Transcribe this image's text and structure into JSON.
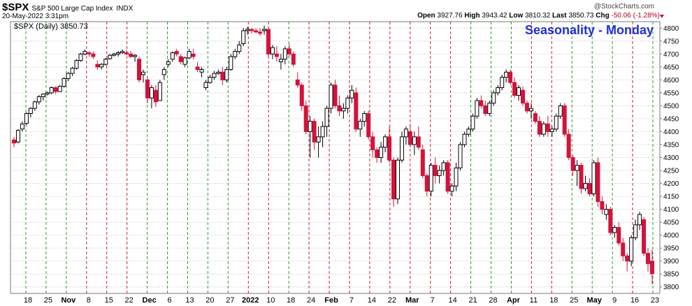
{
  "header": {
    "symbol": "$SPX",
    "description": "S&P 500 Large Cap Index",
    "exchange": "INDX",
    "date": "20-May-2022 3:31pm",
    "attribution": "@StockCharts.com",
    "open_label": "Open",
    "open": "3927.76",
    "high_label": "High",
    "high": "3943.42",
    "low_label": "Low",
    "low": "3810.32",
    "last_label": "Last",
    "last": "3850.73",
    "chg_label": "Chg",
    "chg": "-50.06 (-1.28%)"
  },
  "colors": {
    "up": "#ffffff",
    "down": "#d4123a",
    "green_line": "#2a9b2a",
    "red_line": "#c81e2a",
    "title": "#1f2fd6"
  },
  "chart_data": {
    "type": "candlestick",
    "title": "Seasonality - Monday",
    "legend": "$SPX (Daily) 3850.73",
    "ylim": [
      3775,
      4825
    ],
    "y_ticks": [
      3800,
      3850,
      3900,
      3950,
      4000,
      4050,
      4100,
      4150,
      4200,
      4250,
      4300,
      4350,
      4400,
      4450,
      4500,
      4550,
      4600,
      4650,
      4700,
      4750,
      4800
    ],
    "x_tick_labels": [
      "18",
      "25",
      "Nov",
      "8",
      "15",
      "22",
      "Dec",
      "6",
      "13",
      "20",
      "27",
      "2022",
      "10",
      "18",
      "24",
      "Feb",
      "7",
      "14",
      "22",
      "Mar",
      "7",
      "14",
      "21",
      "28",
      "Apr",
      "11",
      "18",
      "25",
      "May",
      "9",
      "16",
      "23"
    ],
    "bold_tick_labels": [
      "Nov",
      "Dec",
      "2022",
      "Feb",
      "Mar",
      "Apr",
      "May"
    ],
    "vertical_markers": "Green dashed lines mark Mondays before up days, red dashed lines mark Mondays before down days",
    "marker_colors": [
      "green",
      "green",
      "green",
      "red",
      "red",
      "red",
      "green",
      "green",
      "green",
      "green",
      "green",
      "red",
      "red",
      "green",
      "red",
      "red",
      "red",
      "red",
      "red",
      "red",
      "red",
      "red",
      "green",
      "green",
      "green",
      "red",
      "red",
      "green",
      "green",
      "green",
      "red",
      "green"
    ],
    "candles": [
      [
        4368,
        4380,
        4340,
        4356
      ],
      [
        4360,
        4410,
        4355,
        4405
      ],
      [
        4410,
        4440,
        4400,
        4430
      ],
      [
        4432,
        4475,
        4425,
        4470
      ],
      [
        4470,
        4495,
        4455,
        4490
      ],
      [
        4490,
        4520,
        4480,
        4515
      ],
      [
        4515,
        4542,
        4505,
        4535
      ],
      [
        4535,
        4548,
        4520,
        4545
      ],
      [
        4545,
        4555,
        4540,
        4550
      ],
      [
        4550,
        4575,
        4545,
        4570
      ],
      [
        4570,
        4575,
        4545,
        4555
      ],
      [
        4555,
        4580,
        4555,
        4575
      ],
      [
        4575,
        4610,
        4570,
        4605
      ],
      [
        4605,
        4630,
        4595,
        4625
      ],
      [
        4625,
        4650,
        4615,
        4645
      ],
      [
        4645,
        4680,
        4640,
        4675
      ],
      [
        4675,
        4705,
        4670,
        4700
      ],
      [
        4700,
        4718,
        4695,
        4710
      ],
      [
        4705,
        4712,
        4690,
        4700
      ],
      [
        4700,
        4710,
        4680,
        4690
      ],
      [
        4660,
        4675,
        4640,
        4650
      ],
      [
        4650,
        4665,
        4640,
        4660
      ],
      [
        4660,
        4685,
        4655,
        4680
      ],
      [
        4682,
        4700,
        4678,
        4695
      ],
      [
        4695,
        4705,
        4690,
        4700
      ],
      [
        4700,
        4712,
        4690,
        4705
      ],
      [
        4705,
        4718,
        4700,
        4710
      ],
      [
        4705,
        4715,
        4695,
        4700
      ],
      [
        4700,
        4712,
        4685,
        4690
      ],
      [
        4690,
        4700,
        4670,
        4695
      ],
      [
        4680,
        4690,
        4590,
        4600
      ],
      [
        4620,
        4640,
        4590,
        4630
      ],
      [
        4600,
        4610,
        4510,
        4530
      ],
      [
        4530,
        4580,
        4490,
        4570
      ],
      [
        4560,
        4580,
        4495,
        4515
      ],
      [
        4520,
        4600,
        4520,
        4590
      ],
      [
        4620,
        4650,
        4600,
        4640
      ],
      [
        4660,
        4680,
        4650,
        4670
      ],
      [
        4680,
        4710,
        4670,
        4705
      ],
      [
        4710,
        4720,
        4690,
        4700
      ],
      [
        4690,
        4700,
        4660,
        4670
      ],
      [
        4660,
        4690,
        4650,
        4685
      ],
      [
        4685,
        4720,
        4680,
        4710
      ],
      [
        4700,
        4720,
        4680,
        4690
      ],
      [
        4650,
        4670,
        4630,
        4640
      ],
      [
        4630,
        4650,
        4610,
        4640
      ],
      [
        4570,
        4600,
        4560,
        4590
      ],
      [
        4590,
        4620,
        4585,
        4610
      ],
      [
        4610,
        4635,
        4600,
        4625
      ],
      [
        4625,
        4640,
        4620,
        4630
      ],
      [
        4630,
        4650,
        4580,
        4600
      ],
      [
        4600,
        4650,
        4590,
        4640
      ],
      [
        4640,
        4700,
        4635,
        4690
      ],
      [
        4690,
        4720,
        4680,
        4710
      ],
      [
        4710,
        4750,
        4700,
        4735
      ],
      [
        4740,
        4800,
        4730,
        4790
      ],
      [
        4790,
        4805,
        4775,
        4795
      ],
      [
        4795,
        4800,
        4778,
        4790
      ],
      [
        4790,
        4800,
        4780,
        4785
      ],
      [
        4785,
        4800,
        4770,
        4780
      ],
      [
        4790,
        4810,
        4775,
        4795
      ],
      [
        4795,
        4800,
        4690,
        4700
      ],
      [
        4700,
        4735,
        4680,
        4725
      ],
      [
        4700,
        4730,
        4670,
        4690
      ],
      [
        4670,
        4700,
        4640,
        4680
      ],
      [
        4680,
        4730,
        4660,
        4720
      ],
      [
        4720,
        4740,
        4690,
        4700
      ],
      [
        4700,
        4710,
        4650,
        4660
      ],
      [
        4600,
        4630,
        4570,
        4580
      ],
      [
        4580,
        4590,
        4480,
        4500
      ],
      [
        4500,
        4520,
        4390,
        4400
      ],
      [
        4400,
        4460,
        4300,
        4440
      ],
      [
        4440,
        4450,
        4330,
        4360
      ],
      [
        4360,
        4420,
        4300,
        4380
      ],
      [
        4380,
        4440,
        4340,
        4420
      ],
      [
        4420,
        4500,
        4380,
        4490
      ],
      [
        4490,
        4590,
        4470,
        4580
      ],
      [
        4580,
        4600,
        4490,
        4500
      ],
      [
        4500,
        4540,
        4460,
        4480
      ],
      [
        4480,
        4510,
        4450,
        4490
      ],
      [
        4490,
        4540,
        4470,
        4530
      ],
      [
        4530,
        4580,
        4510,
        4560
      ],
      [
        4550,
        4570,
        4400,
        4410
      ],
      [
        4410,
        4450,
        4380,
        4440
      ],
      [
        4440,
        4480,
        4420,
        4470
      ],
      [
        4470,
        4480,
        4370,
        4380
      ],
      [
        4380,
        4400,
        4300,
        4330
      ],
      [
        4330,
        4340,
        4280,
        4300
      ],
      [
        4300,
        4360,
        4280,
        4340
      ],
      [
        4340,
        4390,
        4320,
        4380
      ],
      [
        4380,
        4420,
        4280,
        4290
      ],
      [
        4290,
        4300,
        4110,
        4140
      ],
      [
        4140,
        4300,
        4120,
        4290
      ],
      [
        4290,
        4400,
        4280,
        4380
      ],
      [
        4380,
        4420,
        4350,
        4410
      ],
      [
        4400,
        4430,
        4340,
        4350
      ],
      [
        4350,
        4400,
        4310,
        4380
      ],
      [
        4380,
        4420,
        4330,
        4340
      ],
      [
        4330,
        4350,
        4220,
        4230
      ],
      [
        4230,
        4240,
        4150,
        4170
      ],
      [
        4170,
        4280,
        4150,
        4270
      ],
      [
        4270,
        4300,
        4200,
        4230
      ],
      [
        4230,
        4270,
        4200,
        4250
      ],
      [
        4250,
        4290,
        4230,
        4280
      ],
      [
        4280,
        4290,
        4160,
        4170
      ],
      [
        4170,
        4200,
        4150,
        4190
      ],
      [
        4190,
        4280,
        4170,
        4260
      ],
      [
        4260,
        4360,
        4250,
        4350
      ],
      [
        4350,
        4400,
        4340,
        4390
      ],
      [
        4390,
        4420,
        4380,
        4410
      ],
      [
        4410,
        4470,
        4400,
        4460
      ],
      [
        4460,
        4530,
        4450,
        4520
      ],
      [
        4520,
        4540,
        4490,
        4500
      ],
      [
        4500,
        4520,
        4460,
        4470
      ],
      [
        4470,
        4520,
        4460,
        4510
      ],
      [
        4510,
        4560,
        4500,
        4550
      ],
      [
        4550,
        4580,
        4540,
        4570
      ],
      [
        4570,
        4620,
        4560,
        4610
      ],
      [
        4610,
        4640,
        4590,
        4630
      ],
      [
        4630,
        4640,
        4580,
        4590
      ],
      [
        4590,
        4610,
        4530,
        4540
      ],
      [
        4540,
        4580,
        4520,
        4570
      ],
      [
        4560,
        4575,
        4500,
        4510
      ],
      [
        4510,
        4520,
        4470,
        4480
      ],
      [
        4480,
        4510,
        4450,
        4490
      ],
      [
        4470,
        4480,
        4430,
        4440
      ],
      [
        4440,
        4460,
        4380,
        4390
      ],
      [
        4390,
        4440,
        4380,
        4430
      ],
      [
        4430,
        4460,
        4380,
        4400
      ],
      [
        4400,
        4420,
        4380,
        4410
      ],
      [
        4410,
        4470,
        4400,
        4460
      ],
      [
        4460,
        4510,
        4450,
        4500
      ],
      [
        4500,
        4510,
        4380,
        4390
      ],
      [
        4390,
        4410,
        4290,
        4300
      ],
      [
        4300,
        4310,
        4230,
        4250
      ],
      [
        4250,
        4290,
        4190,
        4270
      ],
      [
        4270,
        4280,
        4160,
        4180
      ],
      [
        4180,
        4230,
        4170,
        4200
      ],
      [
        4200,
        4220,
        4150,
        4160
      ],
      [
        4160,
        4290,
        4150,
        4280
      ],
      [
        4280,
        4300,
        4110,
        4130
      ],
      [
        4130,
        4150,
        4080,
        4100
      ],
      [
        4080,
        4120,
        4060,
        4100
      ],
      [
        4100,
        4110,
        4000,
        4010
      ],
      [
        4010,
        4040,
        3990,
        4030
      ],
      [
        4030,
        4050,
        3960,
        3970
      ],
      [
        3970,
        3990,
        3900,
        3920
      ],
      [
        3920,
        3930,
        3860,
        3900
      ],
      [
        3900,
        4000,
        3880,
        3990
      ],
      [
        3990,
        4060,
        3980,
        4040
      ],
      [
        4040,
        4090,
        4020,
        4080
      ],
      [
        4060,
        4070,
        3920,
        3930
      ],
      [
        3930,
        3950,
        3860,
        3890
      ],
      [
        3900,
        3945,
        3810,
        3851
      ]
    ]
  }
}
